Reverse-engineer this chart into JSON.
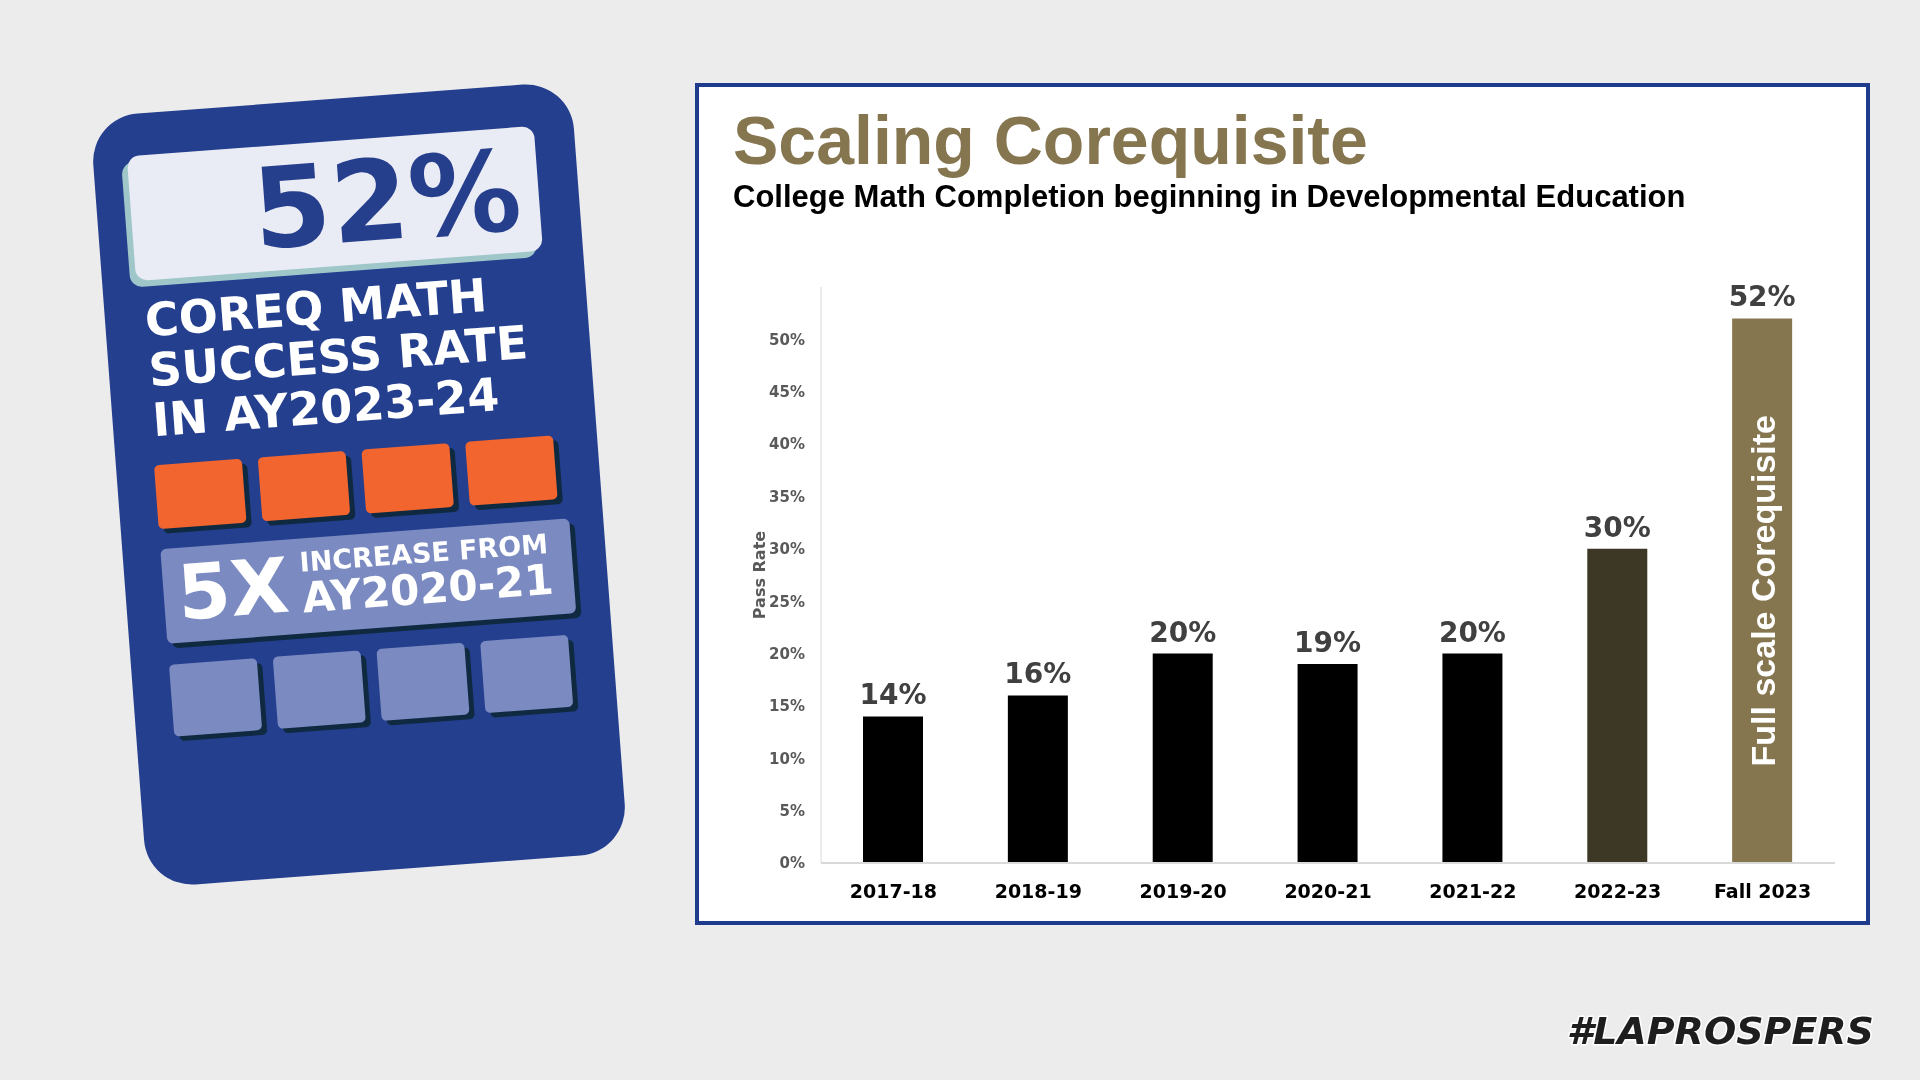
{
  "chart_data": [
    {
      "type": "other",
      "title": "52%",
      "subtitle": "COREQ MATH SUCCESS RATE IN AY2023-24",
      "annotations": [
        "5X",
        "INCREASE FROM",
        "AY2020-21"
      ]
    },
    {
      "type": "bar",
      "title": "Scaling Corequisite",
      "subtitle": "College Math Completion beginning in Developmental Education",
      "ylabel": "Pass Rate",
      "categories": [
        "2017-18",
        "2018-19",
        "2019-20",
        "2020-21",
        "2021-22",
        "2022-23",
        "Fall 2023"
      ],
      "values": [
        14,
        16,
        20,
        19,
        20,
        30,
        52
      ],
      "colors": [
        "#000000",
        "#000000",
        "#000000",
        "#000000",
        "#000000",
        "#3d3726",
        "#857650"
      ],
      "value_labels": [
        "14%",
        "16%",
        "20%",
        "19%",
        "20%",
        "30%",
        "52%"
      ],
      "ylim": [
        0,
        55
      ],
      "yticks": [
        {
          "value": 0,
          "label": "0%"
        },
        {
          "value": 5,
          "label": "5%"
        },
        {
          "value": 10,
          "label": "10%"
        },
        {
          "value": 15,
          "label": "15%"
        },
        {
          "value": 20,
          "label": "20%"
        },
        {
          "value": 25,
          "label": "25%"
        },
        {
          "value": 30,
          "label": "30%"
        },
        {
          "value": 35,
          "label": "35%"
        },
        {
          "value": 40,
          "label": "40%"
        },
        {
          "value": 45,
          "label": "45%"
        },
        {
          "value": 50,
          "label": "50%"
        }
      ],
      "annotations": [
        "Full scale Corequisite",
        "#LAPROSPERS"
      ]
    }
  ]
}
